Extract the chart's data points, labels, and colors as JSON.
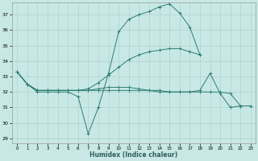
{
  "xlabel": "Humidex (Indice chaleur)",
  "xlim": [
    -0.5,
    23.5
  ],
  "ylim": [
    28.7,
    37.8
  ],
  "yticks": [
    29,
    30,
    31,
    32,
    33,
    34,
    35,
    36,
    37
  ],
  "xticks": [
    0,
    1,
    2,
    3,
    4,
    5,
    6,
    7,
    8,
    9,
    10,
    11,
    12,
    13,
    14,
    15,
    16,
    17,
    18,
    19,
    20,
    21,
    22,
    23
  ],
  "bg_color": "#c8e8e5",
  "line_color": "#2e7d74",
  "grid_color": "#a8ceca",
  "figsize": [
    3.2,
    2.0
  ],
  "dpi": 100,
  "lines": [
    [
      33.3,
      32.5,
      32.0,
      32.0,
      32.0,
      32.0,
      31.7,
      29.3,
      31.0,
      33.2,
      35.9,
      36.7,
      37.0,
      37.2,
      37.5,
      37.7,
      37.1,
      36.2,
      34.4,
      null,
      null,
      null,
      null,
      null
    ],
    [
      33.3,
      32.5,
      32.1,
      32.1,
      32.1,
      32.1,
      32.1,
      32.2,
      32.6,
      33.1,
      33.6,
      34.1,
      34.4,
      34.6,
      34.7,
      34.8,
      34.8,
      34.6,
      34.4,
      null,
      null,
      null,
      null,
      null
    ],
    [
      33.3,
      32.5,
      32.1,
      32.1,
      32.1,
      32.1,
      32.1,
      32.1,
      32.2,
      32.3,
      32.3,
      32.3,
      32.2,
      32.1,
      32.1,
      32.0,
      32.0,
      32.0,
      32.1,
      33.2,
      31.9,
      31.0,
      31.1,
      null
    ],
    [
      33.3,
      32.5,
      32.1,
      32.1,
      32.1,
      32.1,
      32.1,
      32.1,
      32.1,
      32.1,
      32.1,
      32.1,
      32.1,
      32.1,
      32.0,
      32.0,
      32.0,
      32.0,
      32.0,
      32.0,
      32.0,
      31.9,
      31.1,
      31.1
    ]
  ]
}
